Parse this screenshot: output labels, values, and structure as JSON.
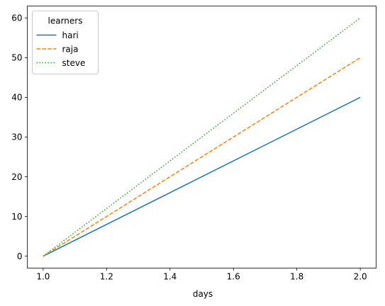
{
  "chart_data": {
    "type": "line",
    "title": "",
    "xlabel": "days",
    "ylabel": "",
    "x": [
      1.0,
      2.0
    ],
    "xlim": [
      0.95,
      2.05
    ],
    "ylim": [
      -3,
      63
    ],
    "xticks": [
      1.0,
      1.2,
      1.4,
      1.6,
      1.8,
      2.0
    ],
    "xtick_labels": [
      "1.0",
      "1.2",
      "1.4",
      "1.6",
      "1.8",
      "2.0"
    ],
    "yticks": [
      0,
      10,
      20,
      30,
      40,
      50,
      60
    ],
    "ytick_labels": [
      "0",
      "10",
      "20",
      "30",
      "40",
      "50",
      "60"
    ],
    "grid": false,
    "legend": {
      "title": "learners",
      "placement": "top-left"
    },
    "series": [
      {
        "name": "hari",
        "values": [
          0,
          40
        ],
        "color": "#1f77b4",
        "style": "solid"
      },
      {
        "name": "raja",
        "values": [
          0,
          50
        ],
        "color": "#ff7f0e",
        "style": "dashed"
      },
      {
        "name": "steve",
        "values": [
          0,
          60
        ],
        "color": "#2ca02c",
        "style": "dotted"
      }
    ]
  }
}
